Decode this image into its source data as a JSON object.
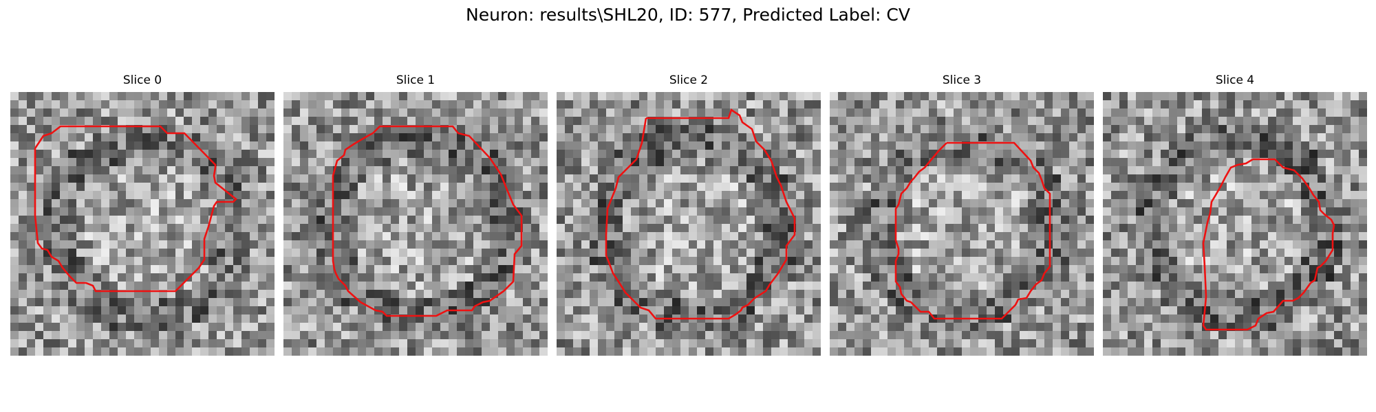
{
  "figure": {
    "title": "Neuron: results\\SHL20, ID: 577, Predicted Label: CV"
  },
  "colors": {
    "contour": "#ee1111",
    "background": "#ffffff"
  },
  "panels": [
    {
      "title": "Slice 0",
      "seed": 11,
      "darkness": 0.45
    },
    {
      "title": "Slice 1",
      "seed": 23,
      "darkness": 0.55
    },
    {
      "title": "Slice 2",
      "seed": 37,
      "darkness": 0.55
    },
    {
      "title": "Slice 3",
      "seed": 41,
      "darkness": 0.5
    },
    {
      "title": "Slice 4",
      "seed": 53,
      "darkness": 0.6
    }
  ]
}
